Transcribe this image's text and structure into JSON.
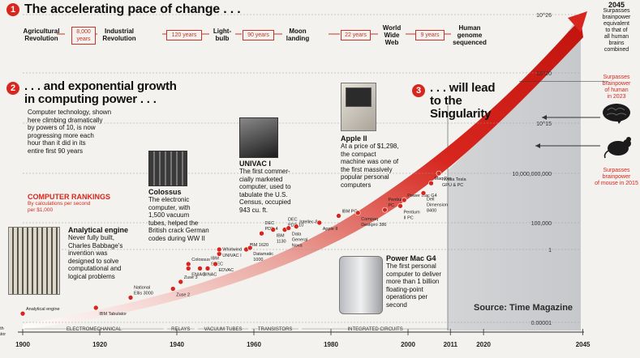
{
  "header": {
    "section1_num": "1",
    "section1_title": "The accelerating pace of change . . .",
    "section2_num": "2",
    "section2_title_line1": ". . . and exponential growth",
    "section2_title_line2": "in computing power . . .",
    "section3_num": "3",
    "section3_title_line1": ". . . will lead",
    "section3_title_line2": "to the",
    "section3_title_line3": "Singularity"
  },
  "timeline": {
    "events": [
      {
        "line1": "Agricultural",
        "line2": "Revolution"
      },
      {
        "line1": "Industrial",
        "line2": "Revolution"
      },
      {
        "line1": "Light-",
        "line2": "bulb"
      },
      {
        "line1": "Moon",
        "line2": "landing"
      },
      {
        "line1": "World",
        "line2": "Wide",
        "line3": "Web"
      },
      {
        "line1": "Human",
        "line2": "genome",
        "line3": "sequenced"
      }
    ],
    "gaps": [
      {
        "line1": "8,000",
        "line2": "years"
      },
      {
        "line1": "120 years"
      },
      {
        "line1": "90 years"
      },
      {
        "line1": "22 years"
      },
      {
        "line1": "9 years"
      }
    ]
  },
  "intro_text": [
    "Computer technology, shown",
    "here climbing dramatically",
    "by powers of 10, is now",
    "progressing more each",
    "hour than it did in its",
    "entire first 90 years"
  ],
  "rankings": {
    "title": "COMPUTER RANKINGS",
    "subtitle_line1": "By calculations per second",
    "subtitle_line2": "per $1,000"
  },
  "callouts": {
    "analytical": {
      "title": "Analytical engine",
      "lines": [
        "Never fully built,",
        "Charles Babbage's",
        "invention was",
        "designed to solve",
        "computational and",
        "logical problems"
      ]
    },
    "colossus": {
      "title": "Colossus",
      "lines": [
        "The electronic",
        "computer, with",
        "1,500 vacuum",
        "tubes, helped the",
        "British crack German",
        "codes during WW II"
      ]
    },
    "univac": {
      "title": "UNIVAC I",
      "lines": [
        "The first commer-",
        "cially marketed",
        "computer, used to",
        "tabulate the U.S.",
        "Census, occupied",
        "943 cu. ft."
      ]
    },
    "apple": {
      "title": "Apple II",
      "lines": [
        "At a price of $1,298,",
        "the compact",
        "machine was one of",
        "the first massively",
        "popular personal",
        "computers"
      ]
    },
    "powermac": {
      "title": "Power Mac G4",
      "lines": [
        "The first personal",
        "computer to deliver",
        "more than 1 billion",
        "floating-point",
        "operations per",
        "second"
      ]
    }
  },
  "right_panel": {
    "year_label": "2045",
    "surpass_all_lines": [
      "Surpasses",
      "brainpower",
      "equivalent",
      "to that of",
      "all human",
      "brains",
      "combined"
    ],
    "human_lines": [
      "Surpasses",
      "brainpower",
      "of human",
      "in 2023"
    ],
    "mouse_lines": [
      "Surpasses",
      "brainpower",
      "of mouse in 2015"
    ],
    "source": "Source: Time Magazine"
  },
  "chart_data": {
    "type": "scatter",
    "title": "",
    "xlabel": "",
    "ylabel": "",
    "x_ticks": [
      "1900",
      "1920",
      "1940",
      "1960",
      "1980",
      "2000",
      "2011",
      "2020",
      "2045"
    ],
    "y_ticks": [
      "10^26",
      "10^20",
      "10^15",
      "10,000,000,000",
      "100,000",
      "1",
      "0.00001"
    ],
    "ylim": [
      "0.00001",
      "10^26"
    ],
    "y_scale": "log",
    "eras": [
      "ELECTROMECHANICAL",
      "RELAYS",
      "VACUUM TUBES",
      "TRANSISTORS",
      "INTEGRATED CIRCUITS"
    ],
    "trend_color": "#d7261e",
    "points": [
      {
        "label_lines": [
          "Hollerith",
          "Tabulator"
        ],
        "x": 1890,
        "y": 1e-05
      },
      {
        "label_lines": [
          "Analytical engine"
        ],
        "x": 1900,
        "y": 4e-05
      },
      {
        "label_lines": [
          "IBM Tabulator"
        ],
        "x": 1919,
        "y": 0.0001
      },
      {
        "label_lines": [
          "National",
          "Ellis 3000"
        ],
        "x": 1928,
        "y": 0.0005
      },
      {
        "label_lines": [
          "Zuse 2"
        ],
        "x": 1939,
        "y": 0.002
      },
      {
        "label_lines": [
          "Zuse 3"
        ],
        "x": 1941,
        "y": 0.006
      },
      {
        "label_lines": [
          "ENIAC"
        ],
        "x": 1943,
        "y": 0.05
      },
      {
        "label_lines": [
          "Colossus"
        ],
        "x": 1943,
        "y": 0.1
      },
      {
        "label_lines": [
          "BINAC"
        ],
        "x": 1946,
        "y": 0.05
      },
      {
        "label_lines": [
          "IBM",
          "SSEC"
        ],
        "x": 1948,
        "y": 0.05
      },
      {
        "label_lines": [
          "EDVAC"
        ],
        "x": 1950,
        "y": 0.1
      },
      {
        "label_lines": [
          "Whirlwind"
        ],
        "x": 1951,
        "y": 0.5
      },
      {
        "label_lines": [
          "UNIVAC I"
        ],
        "x": 1951,
        "y": 1
      },
      {
        "label_lines": [
          "IBM 1620"
        ],
        "x": 1958,
        "y": 1
      },
      {
        "label_lines": [
          "Datamatic",
          "1000"
        ],
        "x": 1959,
        "y": 2
      },
      {
        "label_lines": [
          "DEC",
          "PDP-4"
        ],
        "x": 1962,
        "y": 1000
      },
      {
        "label_lines": [
          "IBM",
          "1130"
        ],
        "x": 1965,
        "y": 5000
      },
      {
        "label_lines": [
          "DEC",
          "PDP-10"
        ],
        "x": 1968,
        "y": 5000
      },
      {
        "label_lines": [
          "Data",
          "General",
          "Nova"
        ],
        "x": 1969,
        "y": 10000
      },
      {
        "label_lines": [
          "Intellec-8"
        ],
        "x": 1971,
        "y": 20000
      },
      {
        "label_lines": [
          "Apple II"
        ],
        "x": 1977,
        "y": 100000
      },
      {
        "label_lines": [
          "IBM PC"
        ],
        "x": 1982,
        "y": 500000
      },
      {
        "label_lines": [
          "Compaq",
          "Deskpro 386"
        ],
        "x": 1987,
        "y": 1000000
      },
      {
        "label_lines": [
          "Pentium",
          "PC"
        ],
        "x": 1994,
        "y": 2000000
      },
      {
        "label_lines": [
          "Pentium",
          "II PC"
        ],
        "x": 1998,
        "y": 5000000
      },
      {
        "label_lines": [
          "Power Mac G4"
        ],
        "x": 1999,
        "y": 20000000
      },
      {
        "label_lines": [
          "Dell",
          "Dimension",
          "8400"
        ],
        "x": 2004,
        "y": 100000000
      },
      {
        "label_lines": [
          "Mac Pro"
        ],
        "x": 2006,
        "y": 1000000000
      },
      {
        "label_lines": [
          "Nvidia Tesla",
          "GPU & PC"
        ],
        "x": 2008,
        "y": 10000000000
      }
    ]
  }
}
